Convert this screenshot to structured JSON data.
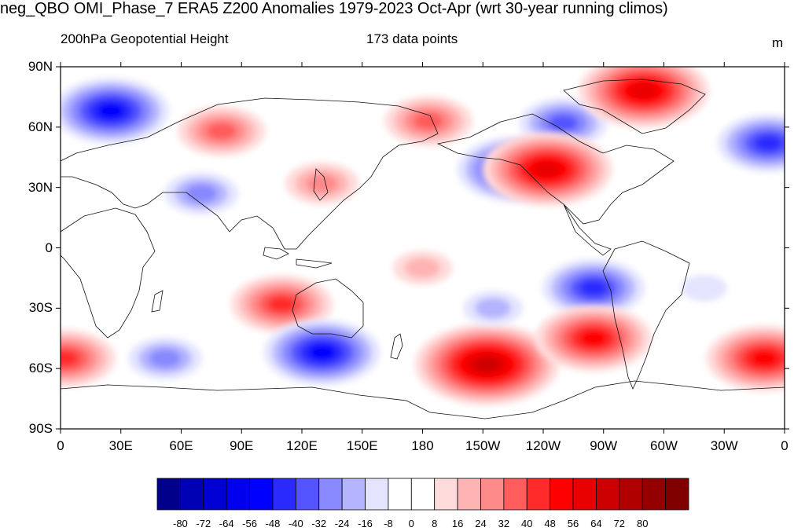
{
  "title": "neg_QBO OMI_Phase_7 ERA5 Z200 Anomalies 1979-2023 Oct-Apr (wrt 30-year running climos)",
  "subtitle_left": "200hPa Geopotential Height",
  "subtitle_center": "173 data points",
  "units": "m",
  "map_extent": {
    "lon": [
      0,
      360
    ],
    "lat": [
      -90,
      90
    ]
  },
  "lat_labels": [
    "90N",
    "60N",
    "30N",
    "0",
    "30S",
    "60S",
    "90S"
  ],
  "lat_values": [
    90,
    60,
    30,
    0,
    -30,
    -60,
    -90
  ],
  "lon_labels": [
    "0",
    "30E",
    "60E",
    "90E",
    "120E",
    "150E",
    "180",
    "150W",
    "120W",
    "90W",
    "60W",
    "30W",
    "0"
  ],
  "lon_values": [
    0,
    30,
    60,
    90,
    120,
    150,
    180,
    210,
    240,
    270,
    300,
    330,
    360
  ],
  "colorbar": {
    "colors": [
      "#00008b",
      "#0000b4",
      "#0000d2",
      "#0000ee",
      "#0000ff",
      "#2a2aff",
      "#5555ff",
      "#8888ff",
      "#b4b4ff",
      "#e4e4ff",
      "#ffffff",
      "#ffffff",
      "#ffdcdc",
      "#ffb4b4",
      "#ff8a8a",
      "#ff5c5c",
      "#ff2a2a",
      "#ff0000",
      "#e80000",
      "#cc0000",
      "#b00000",
      "#940000",
      "#800000"
    ],
    "labels": [
      "-80",
      "-72",
      "-64",
      "-56",
      "-48",
      "-40",
      "-32",
      "-24",
      "-16",
      "-8",
      "0",
      "8",
      "16",
      "24",
      "32",
      "40",
      "48",
      "56",
      "64",
      "72",
      "80"
    ]
  },
  "anomaly_field": [
    {
      "lon": 25,
      "lat": 68,
      "value": -50
    },
    {
      "lon": 80,
      "lat": 58,
      "value": 36
    },
    {
      "lon": 183,
      "lat": 63,
      "value": 34
    },
    {
      "lon": 250,
      "lat": 62,
      "value": -38
    },
    {
      "lon": 290,
      "lat": 78,
      "value": 56
    },
    {
      "lon": 352,
      "lat": 52,
      "value": -46
    },
    {
      "lon": 226,
      "lat": 39,
      "value": -50
    },
    {
      "lon": 242,
      "lat": 39,
      "value": 58
    },
    {
      "lon": 70,
      "lat": 27,
      "value": -28
    },
    {
      "lon": 130,
      "lat": 32,
      "value": 24
    },
    {
      "lon": 265,
      "lat": -20,
      "value": -42
    },
    {
      "lon": 110,
      "lat": -28,
      "value": 40
    },
    {
      "lon": 130,
      "lat": -52,
      "value": -48
    },
    {
      "lon": 52,
      "lat": -55,
      "value": -30
    },
    {
      "lon": 212,
      "lat": -58,
      "value": 66
    },
    {
      "lon": 265,
      "lat": -45,
      "value": 48
    },
    {
      "lon": 350,
      "lat": -55,
      "value": 52
    },
    {
      "lon": 2,
      "lat": -55,
      "value": 42
    },
    {
      "lon": 180,
      "lat": -10,
      "value": 18
    },
    {
      "lon": 215,
      "lat": -30,
      "value": -16
    },
    {
      "lon": 320,
      "lat": -20,
      "value": -14
    }
  ]
}
